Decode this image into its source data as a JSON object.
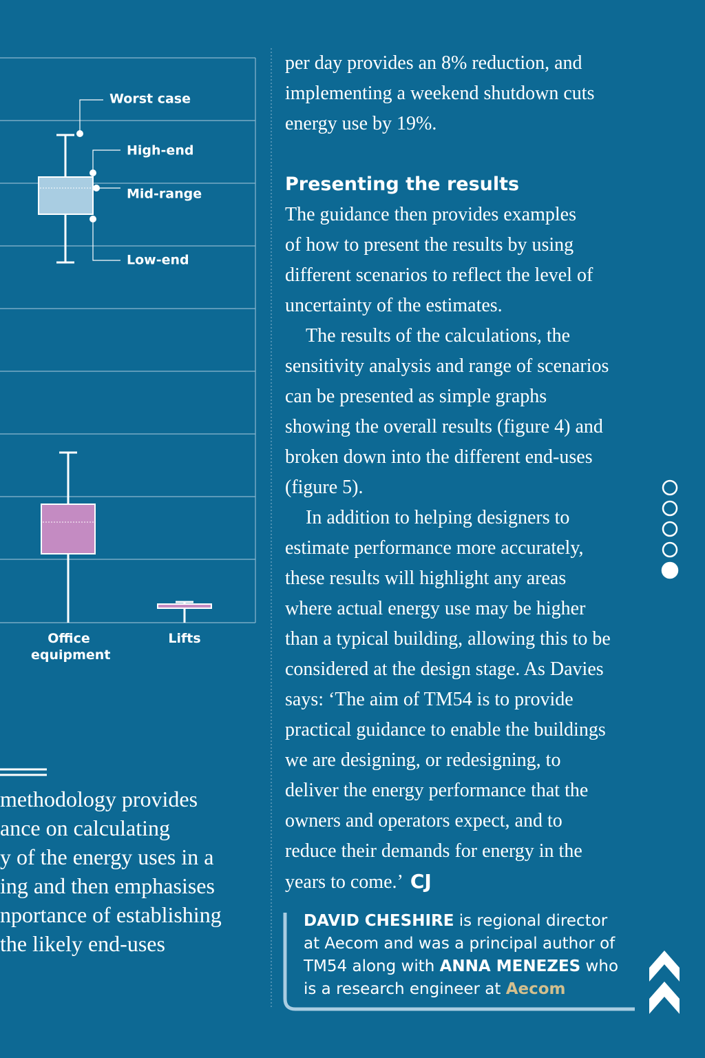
{
  "figure": {
    "legend": [
      "Worst case",
      "High-end",
      "Mid-range",
      "Low-end"
    ],
    "categories": [
      "Office equipment",
      "Lifts"
    ]
  },
  "pull_quote": {
    "lines": [
      "methodology provides",
      "ance on calculating",
      "y of the energy uses in a",
      "ing and then emphasises",
      "nportance of establishing",
      "the likely end-uses"
    ]
  },
  "article": {
    "intro_lines": [
      "per day provides an 8% reduction, and",
      "implementing a weekend shutdown cuts",
      "energy use by 19%."
    ],
    "heading": "Presenting the results",
    "paragraphs": [
      [
        "The guidance then provides examples",
        "of how to present the results by using",
        "different scenarios to reflect the level of",
        "uncertainty of the estimates."
      ],
      [
        "The results of the calculations, the",
        "sensitivity analysis and range of scenarios",
        "can be presented as simple graphs",
        "showing the overall results (figure 4) and",
        "broken down into the different end-uses",
        "(figure 5)."
      ],
      [
        "In addition to helping designers to",
        "estimate performance more accurately,",
        "these results will highlight any areas",
        "where actual energy use may be higher",
        "than a typical building, allowing this to be",
        "considered at the design stage. As Davies",
        "says: ‘The aim of TM54 is to provide",
        "practical guidance to enable the buildings",
        "we are designing, or redesigning, to",
        "deliver the energy performance that the",
        "owners and operators expect, and to",
        "reduce their demands for energy in the",
        "years to come.’"
      ]
    ],
    "sign_off": "CJ"
  },
  "bio": {
    "name1": "DAVID CHESHIRE",
    "text1": " is regional director at Aecom and was a principal author of TM54 along with ",
    "name2": "ANNA MENEZES",
    "text2": " who is a research engineer at ",
    "org": "Aecom"
  }
}
